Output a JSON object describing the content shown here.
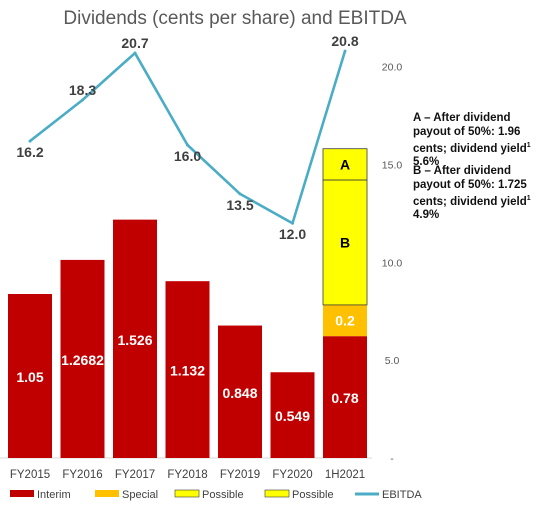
{
  "chart_data": {
    "type": "bar",
    "title": "Dividends (cents per share) and EBITDA",
    "categories": [
      "FY2015",
      "FY2016",
      "FY2017",
      "FY2018",
      "FY2019",
      "FY2020",
      "1H2021"
    ],
    "series": [
      {
        "name": "Interim",
        "kind": "bar",
        "color": "#C00000",
        "values": [
          1.05,
          1.2682,
          1.526,
          1.132,
          0.848,
          0.549,
          0.78
        ],
        "labels": [
          "1.05",
          "1.2682",
          "1.526",
          "1.132",
          "0.848",
          "0.549",
          "0.78"
        ]
      },
      {
        "name": "Special",
        "kind": "bar",
        "color": "#FFC000",
        "values": [
          null,
          null,
          null,
          null,
          null,
          null,
          0.2
        ],
        "labels": [
          "",
          "",
          "",
          "",
          "",
          "",
          "0.2"
        ]
      },
      {
        "name": "Possible",
        "kind": "bar",
        "color": "#FFFF00",
        "values": [
          null,
          null,
          null,
          null,
          null,
          null,
          0.8
        ],
        "labels": [
          "",
          "",
          "",
          "",
          "",
          "",
          "B"
        ]
      },
      {
        "name": "Possible",
        "kind": "bar",
        "color": "#FFFF00",
        "values": [
          null,
          null,
          null,
          null,
          null,
          null,
          0.2
        ],
        "labels": [
          "",
          "",
          "",
          "",
          "",
          "",
          "A"
        ]
      },
      {
        "name": "EBITDA",
        "kind": "line",
        "axis": "right",
        "color": "#4BACC6",
        "values": [
          16.2,
          18.3,
          20.7,
          16.0,
          13.5,
          12.0,
          20.8
        ],
        "labels": [
          "16.2",
          "18.3",
          "20.7",
          "16.0",
          "13.5",
          "12.0",
          "20.8"
        ]
      }
    ],
    "left_axis_range": [
      0,
      2.58
    ],
    "right_axis": {
      "range": [
        0,
        20.6
      ],
      "ticks": [
        0,
        5,
        10,
        15,
        20
      ],
      "tick_labels": [
        "-",
        "5.0",
        "10.0",
        "15.0",
        "20.0"
      ]
    },
    "grid": false,
    "legend_placement": "bottom"
  },
  "notes": {
    "a_text": "A – After dividend payout of 50%: 1.96 cents;  dividend yield",
    "a_sup": "1",
    "a_tail": " 5.6%",
    "b_text": "B – After dividend payout of 50%: 1.725 cents; dividend yield",
    "b_sup": "1",
    "b_tail": " 4.9%"
  }
}
